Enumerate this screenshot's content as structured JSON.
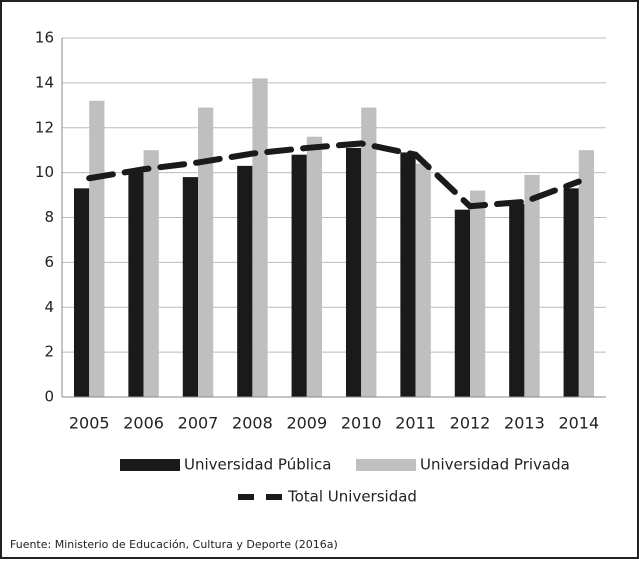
{
  "chart_data": {
    "type": "bar",
    "categories": [
      "2005",
      "2006",
      "2007",
      "2008",
      "2009",
      "2010",
      "2011",
      "2012",
      "2013",
      "2014"
    ],
    "series": [
      {
        "name": "Universidad Pública",
        "color": "#1a1a1a",
        "values": [
          9.3,
          10.0,
          9.8,
          10.3,
          10.8,
          11.1,
          10.9,
          8.35,
          8.6,
          9.3
        ]
      },
      {
        "name": "Universidad Privada",
        "color": "#bfbfbf",
        "values": [
          13.2,
          11.0,
          12.9,
          14.2,
          11.6,
          12.9,
          10.4,
          9.2,
          9.9,
          11.0
        ]
      },
      {
        "name": "Total Universidad",
        "type": "line",
        "color": "#1a1a1a",
        "values": [
          9.75,
          10.15,
          10.45,
          10.85,
          11.1,
          11.3,
          10.8,
          8.5,
          8.7,
          9.6
        ]
      }
    ],
    "ylim": [
      0,
      16
    ],
    "yticks": [
      0,
      2,
      4,
      6,
      8,
      10,
      12,
      14,
      16
    ],
    "grid": true,
    "source": "Fuente: Ministerio de Educación, Cultura y Deporte (2016a)"
  }
}
